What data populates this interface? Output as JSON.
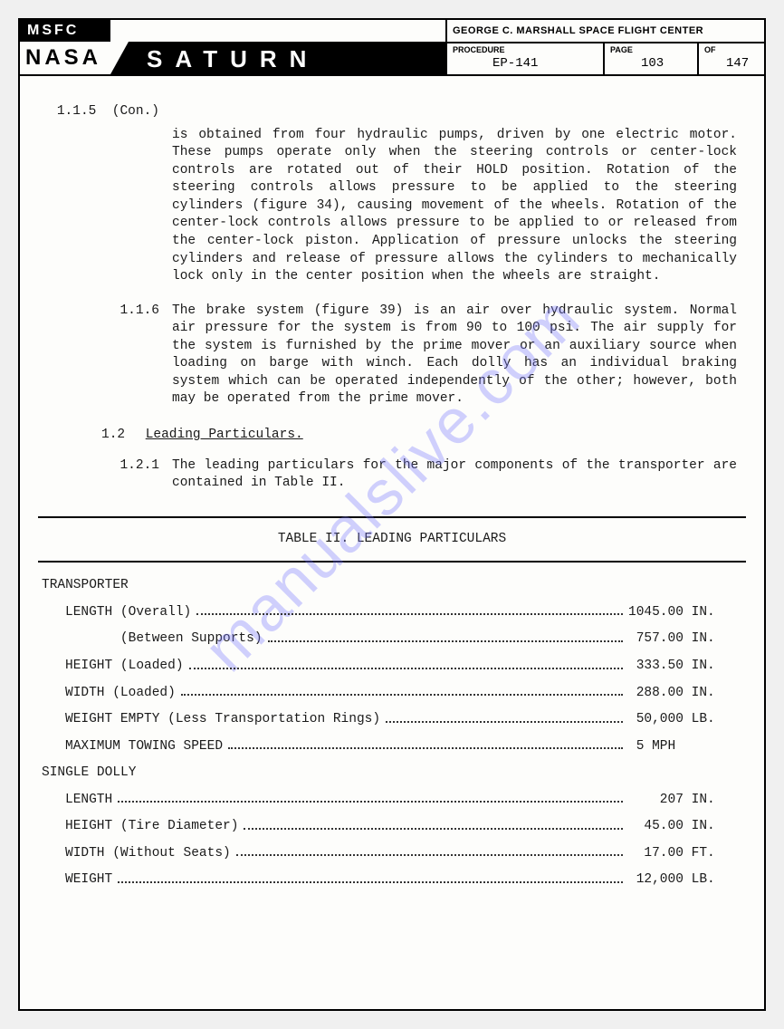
{
  "header": {
    "msfc": "MSFC",
    "nasa": "NASA",
    "saturn": "SATURN",
    "center": "GEORGE C. MARSHALL SPACE FLIGHT CENTER",
    "procedure_label": "PROCEDURE",
    "procedure_value": "EP-141",
    "page_label": "PAGE",
    "page_value": "103",
    "of_label": "OF",
    "of_value": "147"
  },
  "body": {
    "s115_num": "1.1.5",
    "s115_con": "(Con.)",
    "s115_text": "is obtained from four hydraulic pumps, driven by one electric motor.  These pumps operate only when the steering controls or center-lock controls are rotated out of their HOLD position.  Rotation of the steering controls allows pressure to be applied to the steering cylinders (figure 34), causing movement of the wheels.  Rotation of the center-lock controls allows pressure to be applied to or released from the center-lock piston.  Application of pressure unlocks the steering cylinders and release of pressure allows the cylinders to mechanically lock only in the center position when the wheels are straight.",
    "s116_num": "1.1.6",
    "s116_text": "The brake system (figure 39) is an air over hydraulic system.  Normal air pressure for the system is from 90 to 100 psi.  The air supply for the system is furnished by the prime mover or an auxiliary source when loading on barge with winch.  Each dolly has an individual braking system which can be operated independently of the other; however, both may be operated from the prime mover.",
    "s12_num": "1.2",
    "s12_title": "Leading Particulars.",
    "s121_num": "1.2.1",
    "s121_text": "The leading particulars for the major components of the transporter are contained in Table II.",
    "table_title": "TABLE II.  LEADING PARTICULARS",
    "group1": "TRANSPORTER",
    "group2": "SINGLE DOLLY",
    "rows1": [
      {
        "label": "LENGTH (Overall)",
        "value": "1045.00 IN."
      },
      {
        "label": "       (Between Supports)",
        "value": " 757.00 IN."
      },
      {
        "label": "HEIGHT (Loaded)",
        "value": " 333.50 IN."
      },
      {
        "label": "WIDTH (Loaded)",
        "value": " 288.00 IN."
      },
      {
        "label": "WEIGHT EMPTY (Less Transportation Rings)",
        "value": " 50,000 LB."
      },
      {
        "label": "MAXIMUM TOWING SPEED",
        "value": " 5 MPH"
      }
    ],
    "rows2": [
      {
        "label": "LENGTH",
        "value": "    207 IN."
      },
      {
        "label": "HEIGHT (Tire Diameter)",
        "value": "  45.00 IN."
      },
      {
        "label": "WIDTH (Without Seats)",
        "value": "  17.00 FT."
      },
      {
        "label": "WEIGHT",
        "value": " 12,000 LB."
      }
    ]
  },
  "watermark": "manualslive.com"
}
